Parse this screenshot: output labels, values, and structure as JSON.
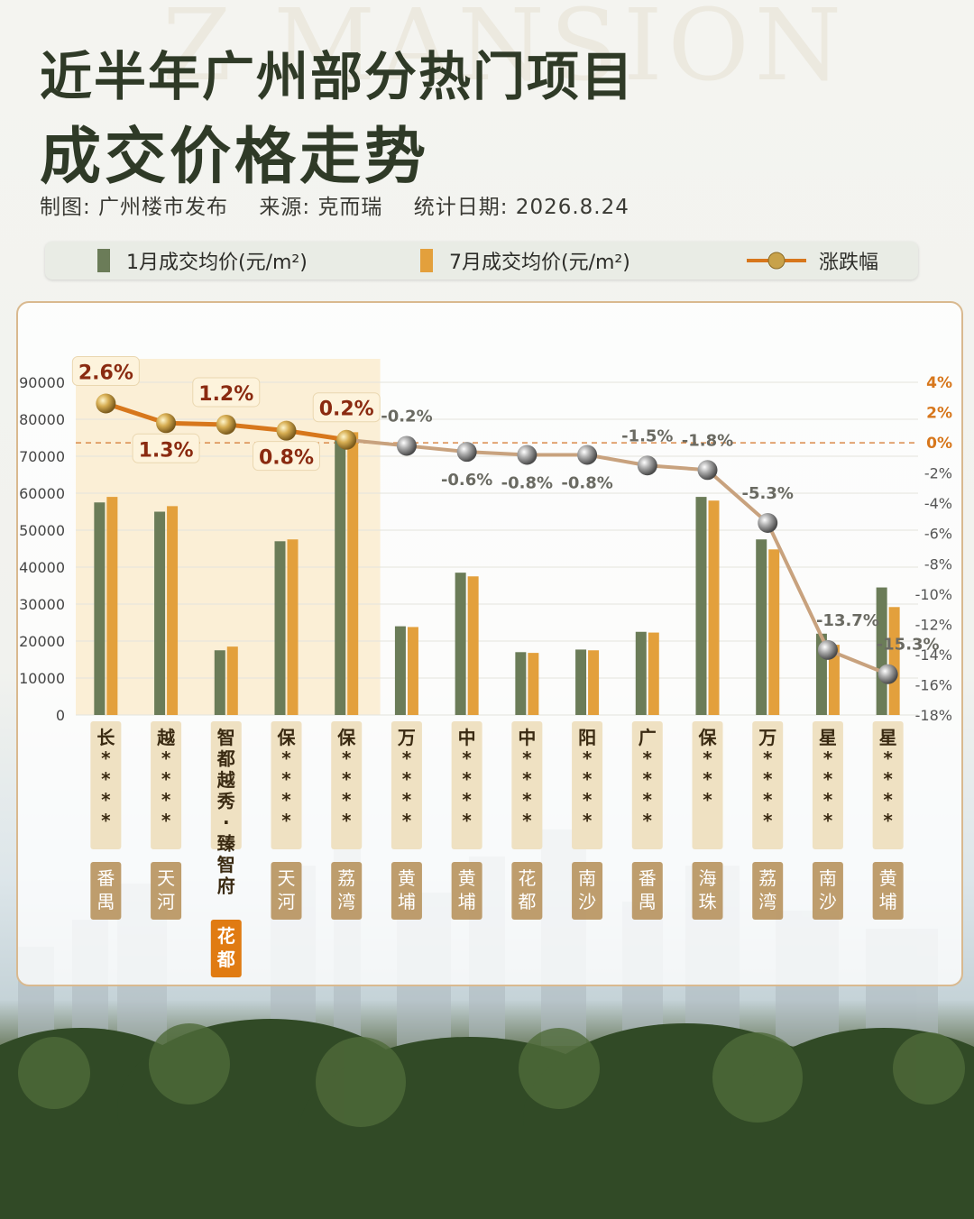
{
  "watermark": "Z MANSION",
  "title_line1": "近半年广州部分热门项目",
  "title_line2": "成交价格走势",
  "meta": {
    "maker": "制图: 广州楼市发布",
    "source": "来源: 克而瑞",
    "date": "统计日期: 2026.8.24"
  },
  "colors": {
    "jan": "#6b7c58",
    "jul": "#e3a03c",
    "line_up": "#d7771c",
    "line_down": "#c8a27e",
    "highlight_bg": "#fbefd6",
    "label_bg": "#efe1c2",
    "highlight_district_bg": "#e07b12"
  },
  "chart_data": {
    "type": "bar",
    "title": "成交价格走势",
    "categories": [
      "长****",
      "越****",
      "智都越秀·臻智府",
      "保****",
      "保****",
      "万****",
      "中****",
      "中****",
      "阳****",
      "广****",
      "保***",
      "万****",
      "星****",
      "星****"
    ],
    "districts": [
      "番禺",
      "天河",
      "花都",
      "天河",
      "荔湾",
      "黄埔",
      "黄埔",
      "花都",
      "南沙",
      "番禺",
      "海珠",
      "荔湾",
      "南沙",
      "黄埔"
    ],
    "highlight_index": 2,
    "series": [
      {
        "name": "1月成交均价(元/m²)",
        "values": [
          57500,
          55000,
          17500,
          47000,
          74500,
          24000,
          38500,
          17000,
          17700,
          22500,
          59000,
          47500,
          22000,
          34500
        ]
      },
      {
        "name": "7月成交均价(元/m²)",
        "values": [
          59000,
          56500,
          18500,
          47500,
          76500,
          23800,
          37500,
          16800,
          17500,
          22300,
          58000,
          44800,
          19000,
          29200
        ]
      }
    ],
    "change": {
      "name": "涨跌幅",
      "values": [
        2.6,
        1.3,
        1.2,
        0.8,
        0.2,
        -0.2,
        -0.6,
        -0.8,
        -0.8,
        -1.5,
        -1.8,
        -5.3,
        -13.7,
        -15.3
      ],
      "labels": [
        "2.6%",
        "1.3%",
        "1.2%",
        "0.8%",
        "0.2%",
        "-0.2%",
        "-0.6%",
        "-0.8%",
        "-0.8%",
        "-1.5%",
        "-1.8%",
        "-5.3%",
        "-13.7%",
        "-15.3%"
      ]
    },
    "ylim": [
      0,
      90000
    ],
    "yticks": [
      "0",
      "10000",
      "20000",
      "30000",
      "40000",
      "50000",
      "60000",
      "70000",
      "80000",
      "90000"
    ],
    "y2lim": [
      -18,
      4
    ],
    "y2ticks": [
      "4%",
      "2%",
      "0%",
      "-2%",
      "-4%",
      "-6%",
      "-8%",
      "-10%",
      "-12%",
      "-14%",
      "-16%",
      "-18%"
    ],
    "legend_position": "top"
  }
}
